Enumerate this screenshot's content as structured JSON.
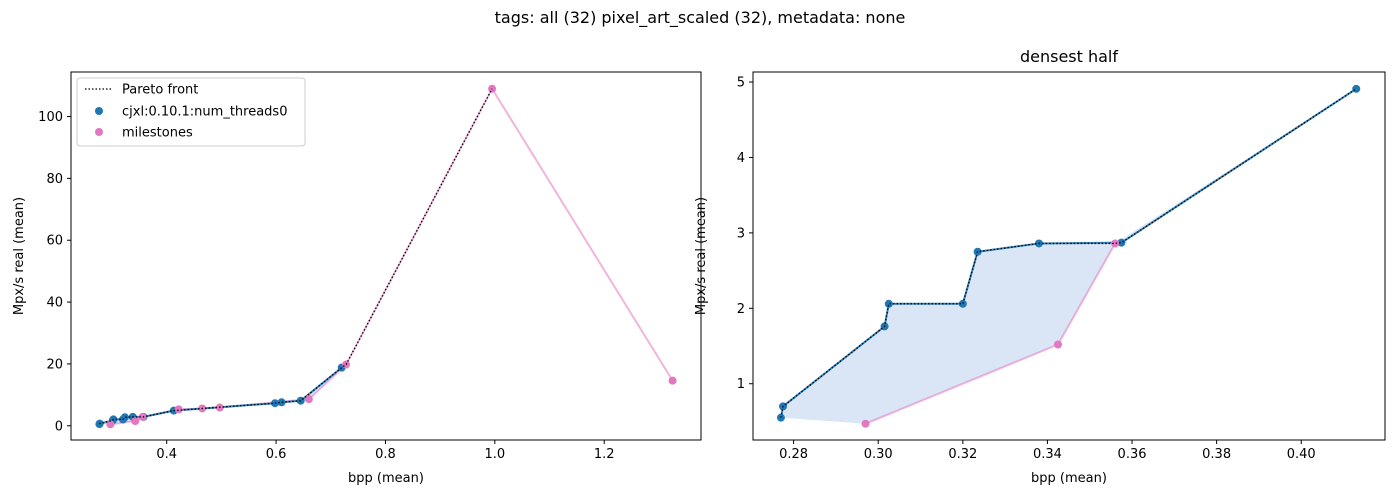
{
  "figure": {
    "suptitle": "tags: all (32) pixel_art_scaled (32), metadata: none"
  },
  "colors": {
    "cjxl": "#1f77b4",
    "milestones": "#e377c2",
    "pareto": "#000000",
    "fill": "#aec7e8"
  },
  "chart_data": [
    {
      "type": "scatter",
      "title": "",
      "xlabel": "bpp (mean)",
      "ylabel": "Mpx/s real (mean)",
      "xlim": [
        0.225,
        1.377
      ],
      "ylim": [
        -4.6,
        114.4
      ],
      "xticks": [
        0.4,
        0.6,
        0.8,
        1.0,
        1.2
      ],
      "xtick_labels": [
        "0.4",
        "0.6",
        "0.8",
        "1.0",
        "1.2"
      ],
      "yticks": [
        0,
        20,
        40,
        60,
        80,
        100
      ],
      "ytick_labels": [
        "0",
        "20",
        "40",
        "60",
        "80",
        "100"
      ],
      "grid": false,
      "legend_position": "top-left",
      "legend": [
        "Pareto front",
        "cjxl:0.10.1:num_threads0",
        "milestones"
      ],
      "series": [
        {
          "name": "cjxl:0.10.1:num_threads0",
          "color": "#1f77b4",
          "x": [
            0.277,
            0.2775,
            0.3015,
            0.3025,
            0.32,
            0.3235,
            0.338,
            0.3575,
            0.413,
            0.598,
            0.61,
            0.645,
            0.72
          ],
          "y": [
            0.55,
            0.7,
            1.76,
            2.06,
            2.06,
            2.75,
            2.86,
            2.87,
            4.91,
            7.3,
            7.6,
            8.1,
            18.8
          ]
        },
        {
          "name": "milestones",
          "color": "#e377c2",
          "x": [
            0.297,
            0.3425,
            0.356,
            0.422,
            0.465,
            0.497,
            0.66,
            0.728,
            0.995,
            1.325
          ],
          "y": [
            0.47,
            1.52,
            2.86,
            5.3,
            5.6,
            5.9,
            8.6,
            19.8,
            109.0,
            14.6
          ]
        },
        {
          "name": "Pareto front",
          "color": "#000000",
          "x": [
            0.277,
            0.2775,
            0.3015,
            0.3025,
            0.32,
            0.3235,
            0.338,
            0.356,
            0.3575,
            0.413,
            0.598,
            0.61,
            0.645,
            0.72,
            0.728,
            0.995
          ],
          "y": [
            0.55,
            0.7,
            1.76,
            2.06,
            2.06,
            2.75,
            2.86,
            2.86,
            2.87,
            4.91,
            7.3,
            7.6,
            8.1,
            18.8,
            19.8,
            109.0
          ]
        }
      ]
    },
    {
      "type": "scatter",
      "title": "densest half",
      "xlabel": "bpp (mean)",
      "ylabel": "Mpx/s real (mean)",
      "xlim": [
        0.2704,
        0.4198
      ],
      "ylim": [
        0.254,
        5.133
      ],
      "xticks": [
        0.28,
        0.3,
        0.32,
        0.34,
        0.36,
        0.38,
        0.4
      ],
      "xtick_labels": [
        "0.28",
        "0.30",
        "0.32",
        "0.34",
        "0.36",
        "0.38",
        "0.40"
      ],
      "yticks": [
        1,
        2,
        3,
        4,
        5
      ],
      "ytick_labels": [
        "1",
        "2",
        "3",
        "4",
        "5"
      ],
      "grid": false,
      "legend_position": "none",
      "series": [
        {
          "name": "cjxl:0.10.1:num_threads0",
          "color": "#1f77b4",
          "x": [
            0.277,
            0.2775,
            0.3015,
            0.3025,
            0.32,
            0.3235,
            0.338,
            0.3575,
            0.413
          ],
          "y": [
            0.55,
            0.7,
            1.76,
            2.06,
            2.06,
            2.75,
            2.86,
            2.87,
            4.91
          ]
        },
        {
          "name": "milestones",
          "color": "#e377c2",
          "x": [
            0.297,
            0.3425,
            0.356
          ],
          "y": [
            0.47,
            1.52,
            2.86
          ]
        },
        {
          "name": "Pareto front",
          "color": "#000000",
          "x": [
            0.277,
            0.2775,
            0.3015,
            0.3025,
            0.32,
            0.3235,
            0.338,
            0.356,
            0.3575,
            0.413
          ],
          "y": [
            0.55,
            0.7,
            1.76,
            2.06,
            2.06,
            2.75,
            2.86,
            2.86,
            2.87,
            4.91
          ]
        }
      ]
    }
  ]
}
